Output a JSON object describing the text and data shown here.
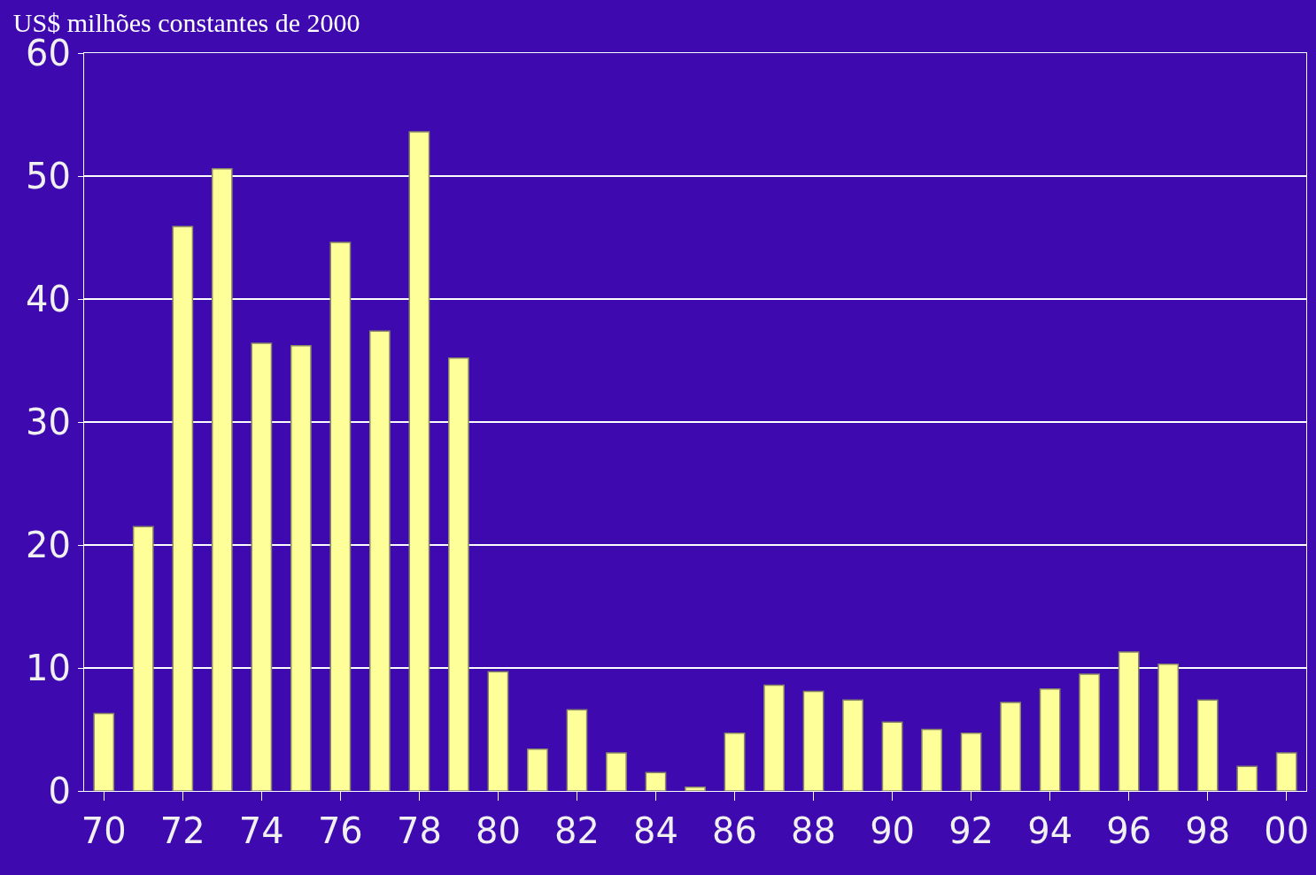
{
  "chart_data": {
    "type": "bar",
    "title": "US$ milhões constantes de 2000",
    "categories": [
      "70",
      null,
      "72",
      null,
      "74",
      null,
      "76",
      null,
      "78",
      null,
      "80",
      null,
      "82",
      null,
      "84",
      null,
      "86",
      null,
      "88",
      null,
      "90",
      null,
      "92",
      null,
      "94",
      null,
      "96",
      null,
      "98",
      null,
      "00"
    ],
    "values": [
      6.3,
      21.5,
      45.9,
      50.6,
      36.4,
      36.2,
      44.6,
      37.4,
      53.6,
      35.2,
      9.7,
      3.4,
      6.6,
      3.1,
      1.5,
      0.3,
      4.7,
      8.6,
      8.1,
      7.4,
      5.6,
      5.0,
      4.7,
      7.2,
      8.3,
      9.5,
      11.3,
      10.3,
      7.4,
      2.0,
      3.1
    ],
    "color": "#ffff99",
    "ylim": [
      0,
      60
    ],
    "yticks": [
      0,
      10,
      20,
      30,
      40,
      50,
      60
    ],
    "grid": "y"
  }
}
